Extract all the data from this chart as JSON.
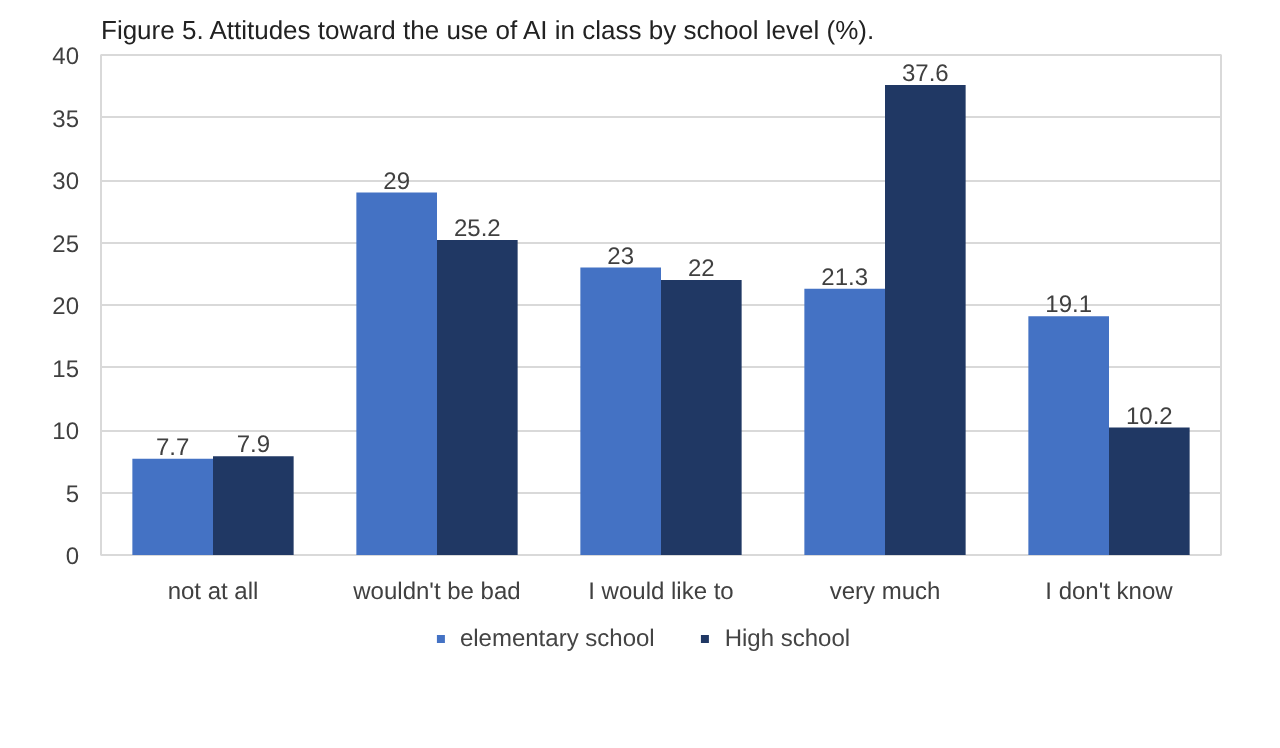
{
  "chart_data": {
    "type": "bar",
    "title": "Figure 5. Attitudes toward the use of AI in class by school level (%).",
    "categories": [
      "not at all",
      "wouldn't be bad",
      "I would like to",
      "very much",
      "I don't know"
    ],
    "series": [
      {
        "name": "elementary school",
        "color": "#4472c4",
        "values": [
          7.7,
          29,
          23,
          21.3,
          19.1
        ]
      },
      {
        "name": "High school",
        "color": "#203864",
        "values": [
          7.9,
          25.2,
          22,
          37.6,
          10.2
        ]
      }
    ],
    "ylim": [
      0,
      40
    ],
    "yticks": [
      0,
      5,
      10,
      15,
      20,
      25,
      30,
      35,
      40
    ],
    "grid": "y",
    "legend": "bottom",
    "data_labels": true
  }
}
